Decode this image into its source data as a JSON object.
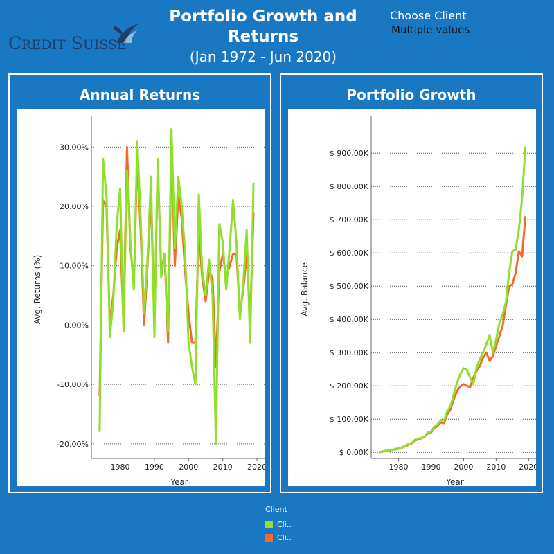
{
  "header": {
    "logo_text": "Credit Suisse",
    "title": "Portfolio Growth and Returns",
    "subtitle": "(Jan 1972 - Jun 2020)"
  },
  "filter": {
    "label": "Choose Client",
    "value": "Multiple values"
  },
  "colors": {
    "background": "#1a78c2",
    "series_green": "#8ee02a",
    "series_orange": "#f26b2d",
    "logo": "#1d3f6e"
  },
  "legend": {
    "title": "Client",
    "items": [
      {
        "label": "Cli..",
        "color": "#8ee02a"
      },
      {
        "label": "Cli..",
        "color": "#f26b2d"
      }
    ]
  },
  "panels": {
    "left_title": "Annual Returns",
    "right_title": "Portfolio Growth"
  },
  "chart_data": [
    {
      "type": "line",
      "title": "Annual Returns",
      "xlabel": "Year",
      "ylabel": "Avg. Returns (%)",
      "xlim": [
        1972,
        2021
      ],
      "ylim": [
        -22,
        34
      ],
      "xticks": [
        1980,
        1990,
        2000,
        2010,
        2020
      ],
      "xtick_labels": [
        "1980",
        "1990",
        "2000",
        "2010",
        "2020"
      ],
      "yticks": [
        -20,
        -10,
        0,
        10,
        20,
        30
      ],
      "ytick_labels": [
        "-20.00%",
        "-10.00%",
        "0.00%",
        "10.00%",
        "20.00%",
        "30.00%"
      ],
      "grid": "horizontal dotted",
      "series": [
        {
          "color": "#8ee02a",
          "x": [
            1974,
            1975,
            1976,
            1977,
            1978,
            1979,
            1980,
            1981,
            1982,
            1983,
            1984,
            1985,
            1986,
            1987,
            1988,
            1989,
            1990,
            1991,
            1992,
            1993,
            1994,
            1995,
            1996,
            1997,
            1998,
            1999,
            2000,
            2001,
            2002,
            2003,
            2004,
            2005,
            2006,
            2007,
            2008,
            2009,
            2010,
            2011,
            2012,
            2013,
            2014,
            2015,
            2016,
            2017,
            2018,
            2019
          ],
          "y": [
            -18,
            28,
            22,
            -2,
            4,
            17,
            23,
            -1,
            26,
            14,
            6,
            31,
            18,
            2,
            11,
            25,
            -2,
            28,
            8,
            12,
            -1,
            33,
            13,
            25,
            20,
            12,
            -3,
            -7,
            -10,
            22,
            9,
            5,
            11,
            5,
            -20,
            17,
            14,
            6,
            13,
            21,
            14,
            1,
            7,
            16,
            -3,
            24
          ]
        },
        {
          "color": "#f26b2d",
          "x": [
            1974,
            1975,
            1976,
            1977,
            1978,
            1979,
            1980,
            1981,
            1982,
            1983,
            1984,
            1985,
            1986,
            1987,
            1988,
            1989,
            1990,
            1991,
            1992,
            1993,
            1994,
            1995,
            1996,
            1997,
            1998,
            1999,
            2000,
            2001,
            2002,
            2003,
            2004,
            2005,
            2006,
            2007,
            2008,
            2009,
            2010,
            2011,
            2012,
            2013,
            2014,
            2015,
            2016,
            2017,
            2018,
            2019
          ],
          "y": [
            -12,
            21,
            20,
            0,
            5,
            13,
            16,
            0,
            30,
            13,
            7,
            28,
            16,
            0,
            10,
            22,
            0,
            27,
            9,
            12,
            -3,
            30,
            10,
            22,
            18,
            9,
            2,
            -3,
            -3,
            16,
            8,
            4,
            9,
            8,
            -7,
            9,
            12,
            8,
            10,
            12,
            12,
            2,
            6,
            12,
            1,
            19
          ]
        }
      ]
    },
    {
      "type": "line",
      "title": "Portfolio Growth",
      "xlabel": "Year",
      "ylabel": "Avg. Balance",
      "xlim": [
        1972,
        2021
      ],
      "ylim": [
        -10,
        990
      ],
      "xticks": [
        1980,
        1990,
        2000,
        2010,
        2020
      ],
      "xtick_labels": [
        "1980",
        "1990",
        "2000",
        "2010",
        "2020"
      ],
      "yticks": [
        0,
        100,
        200,
        300,
        400,
        500,
        600,
        700,
        800,
        900
      ],
      "ytick_labels": [
        "$ 0.00K",
        "$ 100.00K",
        "$ 200.00K",
        "$ 300.00K",
        "$ 400.00K",
        "$ 500.00K",
        "$ 600.00K",
        "$ 700.00K",
        "$ 800.00K",
        "$ 900.00K"
      ],
      "grid": "horizontal dotted",
      "series": [
        {
          "color": "#8ee02a",
          "x": [
            1974,
            1975,
            1976,
            1977,
            1978,
            1979,
            1980,
            1981,
            1982,
            1983,
            1984,
            1985,
            1986,
            1987,
            1988,
            1989,
            1990,
            1991,
            1992,
            1993,
            1994,
            1995,
            1996,
            1997,
            1998,
            1999,
            2000,
            2001,
            2002,
            2003,
            2004,
            2005,
            2006,
            2007,
            2008,
            2009,
            2010,
            2011,
            2012,
            2013,
            2014,
            2015,
            2016,
            2017,
            2018,
            2019
          ],
          "y": [
            0,
            3,
            5,
            5,
            7,
            10,
            12,
            15,
            20,
            25,
            28,
            37,
            42,
            43,
            48,
            60,
            62,
            78,
            85,
            97,
            96,
            125,
            140,
            175,
            210,
            235,
            253,
            248,
            225,
            205,
            255,
            280,
            300,
            325,
            352,
            300,
            340,
            388,
            415,
            450,
            540,
            605,
            610,
            670,
            765,
            920
          ]
        },
        {
          "color": "#f26b2d",
          "x": [
            1974,
            1975,
            1976,
            1977,
            1978,
            1979,
            1980,
            1981,
            1982,
            1983,
            1984,
            1985,
            1986,
            1987,
            1988,
            1989,
            1990,
            1991,
            1992,
            1993,
            1994,
            1995,
            1996,
            1997,
            1998,
            1999,
            2000,
            2001,
            2002,
            2003,
            2004,
            2005,
            2006,
            2007,
            2008,
            2009,
            2010,
            2011,
            2012,
            2013,
            2014,
            2015,
            2016,
            2017,
            2018,
            2019
          ],
          "y": [
            0,
            2,
            4,
            5,
            7,
            9,
            11,
            14,
            18,
            23,
            27,
            35,
            40,
            42,
            47,
            57,
            60,
            73,
            80,
            90,
            88,
            115,
            130,
            160,
            185,
            198,
            205,
            200,
            196,
            225,
            245,
            260,
            285,
            300,
            275,
            290,
            320,
            350,
            380,
            440,
            500,
            505,
            540,
            605,
            590,
            710
          ]
        }
      ]
    }
  ]
}
